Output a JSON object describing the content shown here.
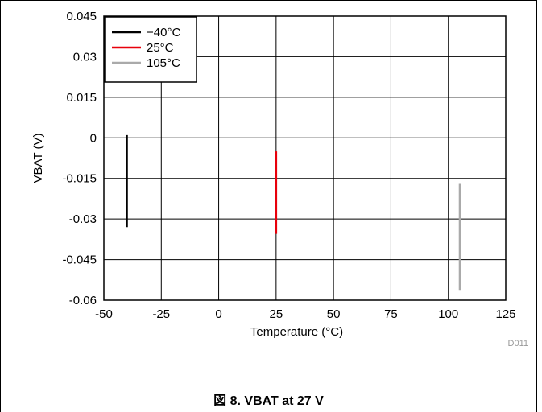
{
  "chart_data": {
    "type": "line",
    "xlabel": "Temperature (°C)",
    "ylabel": "VBAT (V)",
    "xlim": [
      -50,
      125
    ],
    "ylim": [
      -0.06,
      0.045
    ],
    "x_ticks": [
      -50,
      -25,
      0,
      25,
      50,
      75,
      100,
      125
    ],
    "x_tick_labels": [
      "-50",
      "-25",
      "0",
      "25",
      "50",
      "75",
      "100",
      "125"
    ],
    "y_ticks": [
      0.045,
      0.03,
      0.015,
      0,
      -0.015,
      -0.03,
      -0.045,
      -0.06
    ],
    "y_tick_labels": [
      "0.045",
      "0.03",
      "0.015",
      "0",
      "-0.015",
      "-0.03",
      "-0.045",
      "-0.06"
    ],
    "grid": true,
    "legend_position": "top-left",
    "series": [
      {
        "name": "−40°C",
        "color": "#000000",
        "x": [
          -40,
          -40
        ],
        "y": [
          0.001,
          -0.033
        ]
      },
      {
        "name": "25°C",
        "color": "#e8000b",
        "x": [
          25,
          25
        ],
        "y": [
          -0.005,
          -0.0355
        ]
      },
      {
        "name": "105°C",
        "color": "#aaaaaa",
        "x": [
          105,
          105
        ],
        "y": [
          -0.017,
          -0.0565
        ]
      }
    ],
    "annotation": "D011"
  },
  "caption": "図 8. VBAT at 27 V"
}
